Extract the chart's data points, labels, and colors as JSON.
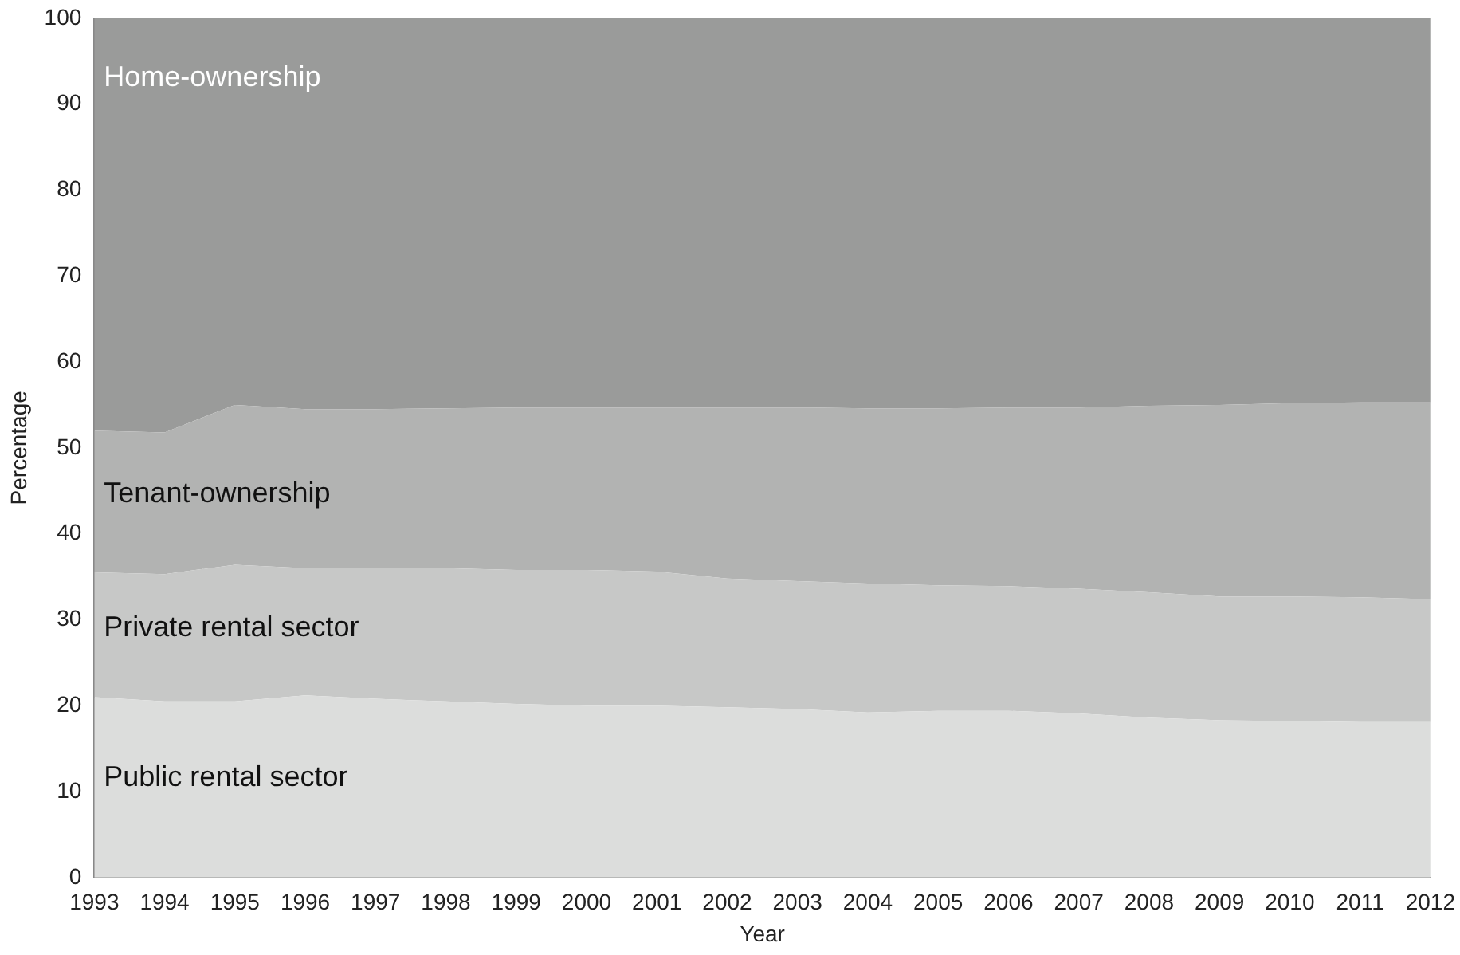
{
  "chart_data": {
    "type": "area",
    "stacked": true,
    "xlabel": "Year",
    "ylabel": "Percentage",
    "legend": false,
    "grid": false,
    "categories": [
      "1993",
      "1994",
      "1995",
      "1996",
      "1997",
      "1998",
      "1999",
      "2000",
      "2001",
      "2002",
      "2003",
      "2004",
      "2005",
      "2006",
      "2007",
      "2008",
      "2009",
      "2010",
      "2011",
      "2012"
    ],
    "ylim": [
      0,
      100
    ],
    "yticks": [
      0,
      10,
      20,
      30,
      40,
      50,
      60,
      70,
      80,
      90,
      100
    ],
    "series": [
      {
        "name": "Public rental sector",
        "color": "#dcdddc",
        "values": [
          21,
          20.5,
          20.5,
          21.2,
          20.8,
          20.5,
          20.2,
          20,
          20,
          19.8,
          19.6,
          19.2,
          19.4,
          19.4,
          19.1,
          18.6,
          18.3,
          18.2,
          18.1,
          18.1
        ]
      },
      {
        "name": "Private rental sector",
        "color": "#c7c8c7",
        "values": [
          14.5,
          14.8,
          15.9,
          14.8,
          15.2,
          15.5,
          15.6,
          15.8,
          15.6,
          15,
          14.9,
          15,
          14.6,
          14.5,
          14.5,
          14.6,
          14.4,
          14.5,
          14.5,
          14.3
        ]
      },
      {
        "name": "Tenant-ownership",
        "color": "#b2b3b2",
        "values": [
          16.5,
          16.5,
          18.6,
          18.5,
          18.5,
          18.6,
          18.9,
          18.9,
          19.1,
          19.9,
          20.2,
          20.4,
          20.6,
          20.8,
          21.1,
          21.7,
          22.3,
          22.5,
          22.7,
          22.9
        ]
      },
      {
        "name": "Home-ownership",
        "color": "#9a9b9a",
        "values": [
          48,
          48.2,
          45,
          45.5,
          45.5,
          45.4,
          45.3,
          45.3,
          45.3,
          45.3,
          45.3,
          45.4,
          45.4,
          45.3,
          45.3,
          45.1,
          45,
          44.8,
          44.7,
          44.7
        ]
      }
    ]
  }
}
